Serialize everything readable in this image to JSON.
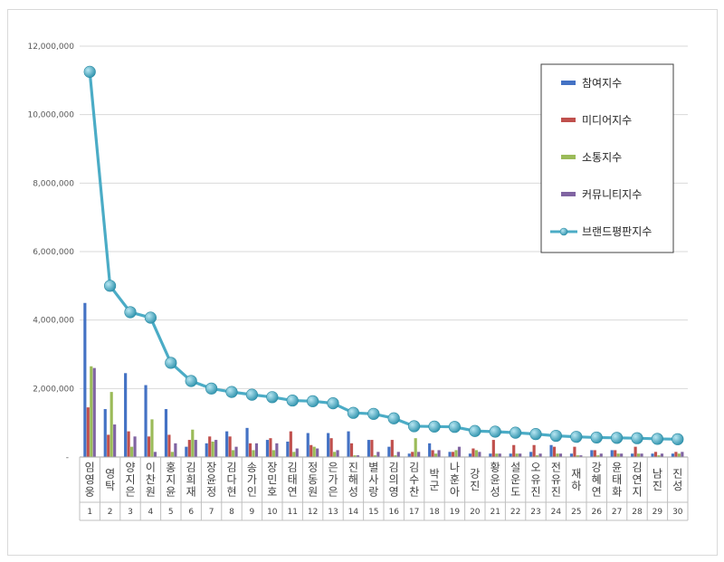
{
  "chart_data": {
    "type": "bar",
    "categories": [
      "임영웅",
      "영탁",
      "양지은",
      "이찬원",
      "홍지윤",
      "김희재",
      "장윤정",
      "김다현",
      "송가인",
      "장민호",
      "김태연",
      "정동원",
      "은가은",
      "진해성",
      "별사랑",
      "김의영",
      "김수찬",
      "박군",
      "나훈아",
      "강진",
      "황윤성",
      "설운도",
      "오유진",
      "전유진",
      "재하",
      "강혜연",
      "윤태화",
      "김연지",
      "남진",
      "진성"
    ],
    "ranks": [
      "1",
      "2",
      "3",
      "4",
      "5",
      "6",
      "7",
      "8",
      "9",
      "10",
      "11",
      "12",
      "13",
      "14",
      "15",
      "16",
      "17",
      "18",
      "19",
      "20",
      "21",
      "22",
      "23",
      "24",
      "25",
      "26",
      "27",
      "28",
      "29",
      "30"
    ],
    "ylim": [
      0,
      12000000
    ],
    "yticks": [
      "-",
      "2,000,000",
      "4,000,000",
      "6,000,000",
      "8,000,000",
      "10,000,000",
      "12,000,000"
    ],
    "grid": true,
    "legend_position": "top-right",
    "series": [
      {
        "name": "참여지수",
        "kind": "bar",
        "color": "#4472C4",
        "values": [
          4500000,
          1400000,
          2450000,
          2100000,
          1400000,
          300000,
          400000,
          750000,
          850000,
          500000,
          450000,
          700000,
          700000,
          750000,
          500000,
          300000,
          100000,
          400000,
          150000,
          100000,
          100000,
          100000,
          150000,
          350000,
          100000,
          200000,
          200000,
          100000,
          100000,
          100000
        ]
      },
      {
        "name": "미디어지수",
        "kind": "bar",
        "color": "#C0504D",
        "values": [
          1450000,
          650000,
          750000,
          600000,
          650000,
          500000,
          600000,
          600000,
          400000,
          550000,
          750000,
          350000,
          550000,
          400000,
          500000,
          500000,
          150000,
          200000,
          150000,
          250000,
          500000,
          350000,
          350000,
          300000,
          300000,
          200000,
          200000,
          300000,
          150000,
          150000
        ]
      },
      {
        "name": "소통지수",
        "kind": "bar",
        "color": "#9BBB59",
        "values": [
          2650000,
          1900000,
          300000,
          1100000,
          150000,
          800000,
          450000,
          200000,
          200000,
          200000,
          150000,
          300000,
          150000,
          50000,
          50000,
          50000,
          550000,
          100000,
          200000,
          200000,
          100000,
          100000,
          50000,
          100000,
          50000,
          50000,
          100000,
          100000,
          50000,
          100000
        ]
      },
      {
        "name": "커뮤니티지수",
        "kind": "bar",
        "color": "#8064A2",
        "values": [
          2600000,
          950000,
          600000,
          150000,
          400000,
          500000,
          500000,
          300000,
          400000,
          400000,
          250000,
          250000,
          200000,
          50000,
          150000,
          150000,
          150000,
          200000,
          300000,
          150000,
          100000,
          100000,
          100000,
          100000,
          50000,
          100000,
          100000,
          100000,
          100000,
          150000
        ]
      },
      {
        "name": "브랜드평판지수",
        "kind": "line",
        "color": "#4BACC6",
        "values": [
          11250000,
          5000000,
          4230000,
          4070000,
          2750000,
          2220000,
          2000000,
          1900000,
          1820000,
          1750000,
          1650000,
          1630000,
          1570000,
          1290000,
          1260000,
          1130000,
          900000,
          890000,
          880000,
          760000,
          740000,
          710000,
          670000,
          620000,
          590000,
          570000,
          560000,
          550000,
          530000,
          520000
        ]
      }
    ]
  }
}
